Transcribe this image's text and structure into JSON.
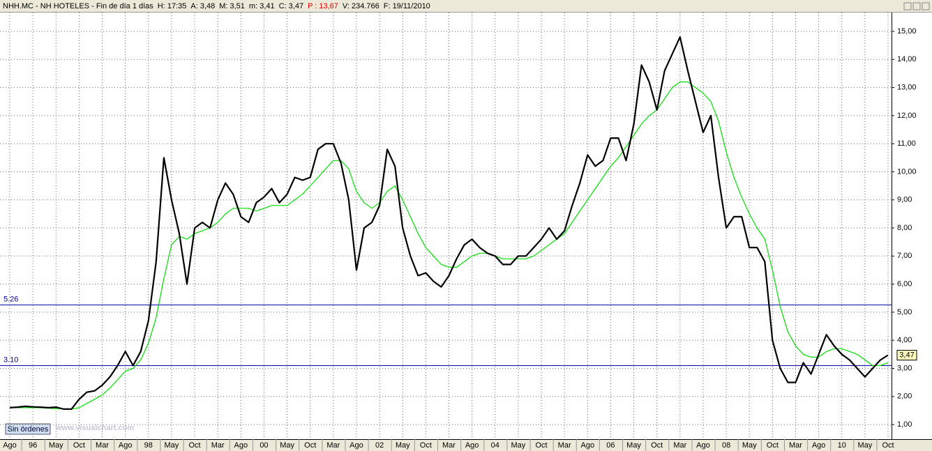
{
  "header": {
    "symbol": "NHH.MC - NH HOTELES - Fin de día 1 días",
    "items": [
      "H: 17:35",
      "A: 3,48",
      "M: 3,51",
      "m: 3,41",
      "C: 3,47"
    ],
    "p": "P : 13,67",
    "v": "V: 234.766",
    "f": "F: 19/11/2010"
  },
  "watermark": "www.visualchart.com",
  "button": "Sin órdenes",
  "chart_data": {
    "type": "line",
    "categories": [
      "Ago",
      null,
      null,
      "96",
      null,
      null,
      "May",
      null,
      null,
      "Oct",
      null,
      null,
      "Mar",
      null,
      null,
      "Ago",
      null,
      null,
      "98",
      null,
      null,
      "May",
      null,
      null,
      "Oct",
      null,
      null,
      "Mar",
      null,
      null,
      "Ago",
      null,
      null,
      "00",
      null,
      null,
      "May",
      null,
      null,
      "Oct",
      null,
      null,
      "Mar",
      null,
      null,
      "Ago",
      null,
      null,
      "02",
      null,
      null,
      "May",
      null,
      null,
      "Oct",
      null,
      null,
      "Mar",
      null,
      null,
      "Ago",
      null,
      null,
      "04",
      null,
      null,
      "May",
      null,
      null,
      "Oct",
      null,
      null,
      "Mar",
      null,
      null,
      "Ago",
      null,
      null,
      "06",
      null,
      null,
      "May",
      null,
      null,
      "Oct",
      null,
      null,
      "Mar",
      null,
      null,
      "Ago",
      null,
      null,
      "08",
      null,
      null,
      "May",
      null,
      null,
      "Oct",
      null,
      null,
      "Mar",
      null,
      null,
      "Ago",
      null,
      null,
      "10",
      null,
      null,
      "May",
      null,
      null,
      "Oct"
    ],
    "series": [
      {
        "color": "#000000",
        "values": [
          1.6,
          1.62,
          1.65,
          1.63,
          1.62,
          1.6,
          1.62,
          1.55,
          1.55,
          1.9,
          2.15,
          2.2,
          2.4,
          2.7,
          3.1,
          3.6,
          3.1,
          3.6,
          4.7,
          6.8,
          10.5,
          9.0,
          7.8,
          6.0,
          8.0,
          8.2,
          8.0,
          9.0,
          9.6,
          9.2,
          8.4,
          8.2,
          8.9,
          9.1,
          9.4,
          8.9,
          9.2,
          9.8,
          9.7,
          9.8,
          10.8,
          11.0,
          11.0,
          10.3,
          9.0,
          6.5,
          8.0,
          8.2,
          8.8,
          10.8,
          10.2,
          8.0,
          7.0,
          6.3,
          6.4,
          6.1,
          5.9,
          6.3,
          6.9,
          7.4,
          7.6,
          7.3,
          7.1,
          7.0,
          6.7,
          6.7,
          7.0,
          7.0,
          7.3,
          7.6,
          8.0,
          7.6,
          7.9,
          8.8,
          9.6,
          10.6,
          10.2,
          10.4,
          11.2,
          11.2,
          10.4,
          11.7,
          13.8,
          13.2,
          12.2,
          13.6,
          14.2,
          14.8,
          13.6,
          12.5,
          11.4,
          12.0,
          9.8,
          8.0,
          8.4,
          8.4,
          7.3,
          7.3,
          6.8,
          4.0,
          3.0,
          2.5,
          2.5,
          3.2,
          2.8,
          3.5,
          4.2,
          3.8,
          3.5,
          3.3,
          3.0,
          2.7,
          3.0,
          3.3,
          3.47
        ],
        "last_label": "3,47"
      },
      {
        "color": "#00dd00",
        "values": [
          1.6,
          1.6,
          1.6,
          1.6,
          1.6,
          1.58,
          1.57,
          1.56,
          1.55,
          1.6,
          1.75,
          1.9,
          2.05,
          2.3,
          2.6,
          2.9,
          3.0,
          3.3,
          3.9,
          4.8,
          6.2,
          7.4,
          7.7,
          7.6,
          7.8,
          7.9,
          8.0,
          8.2,
          8.5,
          8.7,
          8.7,
          8.7,
          8.6,
          8.7,
          8.8,
          8.8,
          8.8,
          9.0,
          9.2,
          9.5,
          9.8,
          10.1,
          10.4,
          10.4,
          10.1,
          9.3,
          8.9,
          8.7,
          8.9,
          9.3,
          9.5,
          9.0,
          8.4,
          7.8,
          7.3,
          7.0,
          6.7,
          6.6,
          6.6,
          6.8,
          7.0,
          7.1,
          7.1,
          7.0,
          6.9,
          6.9,
          6.9,
          6.9,
          7.0,
          7.2,
          7.4,
          7.6,
          7.8,
          8.2,
          8.6,
          9.0,
          9.4,
          9.8,
          10.2,
          10.5,
          10.9,
          11.3,
          11.7,
          12.0,
          12.2,
          12.6,
          13.0,
          13.2,
          13.2,
          13.0,
          12.8,
          12.5,
          11.8,
          10.7,
          9.8,
          9.1,
          8.5,
          8.0,
          7.6,
          6.5,
          5.2,
          4.3,
          3.8,
          3.5,
          3.4,
          3.4,
          3.6,
          3.7,
          3.7,
          3.6,
          3.5,
          3.3,
          3.1,
          3.1,
          3.2
        ]
      }
    ],
    "hlines": [
      {
        "value": 5.26,
        "label": "5.26"
      },
      {
        "value": 3.1,
        "label": "3.10"
      }
    ],
    "hline_color": "#0000aa",
    "ylim": [
      0.48,
      15.67
    ],
    "yticks": [
      {
        "value": 1,
        "label": "1,00"
      },
      {
        "value": 2,
        "label": "2,00"
      },
      {
        "value": 3,
        "label": "3,00"
      },
      {
        "value": 4,
        "label": "4,00"
      },
      {
        "value": 5,
        "label": "5,00"
      },
      {
        "value": 6,
        "label": "6,00"
      },
      {
        "value": 7,
        "label": "7,00"
      },
      {
        "value": 8,
        "label": "8,00"
      },
      {
        "value": 9,
        "label": "9,00"
      },
      {
        "value": 10,
        "label": "10,00"
      },
      {
        "value": 11,
        "label": "11,00"
      },
      {
        "value": 12,
        "label": "12,00"
      },
      {
        "value": 13,
        "label": "13,00"
      },
      {
        "value": 14,
        "label": "14,00"
      },
      {
        "value": 15,
        "label": "15,00"
      }
    ],
    "grid": true
  }
}
